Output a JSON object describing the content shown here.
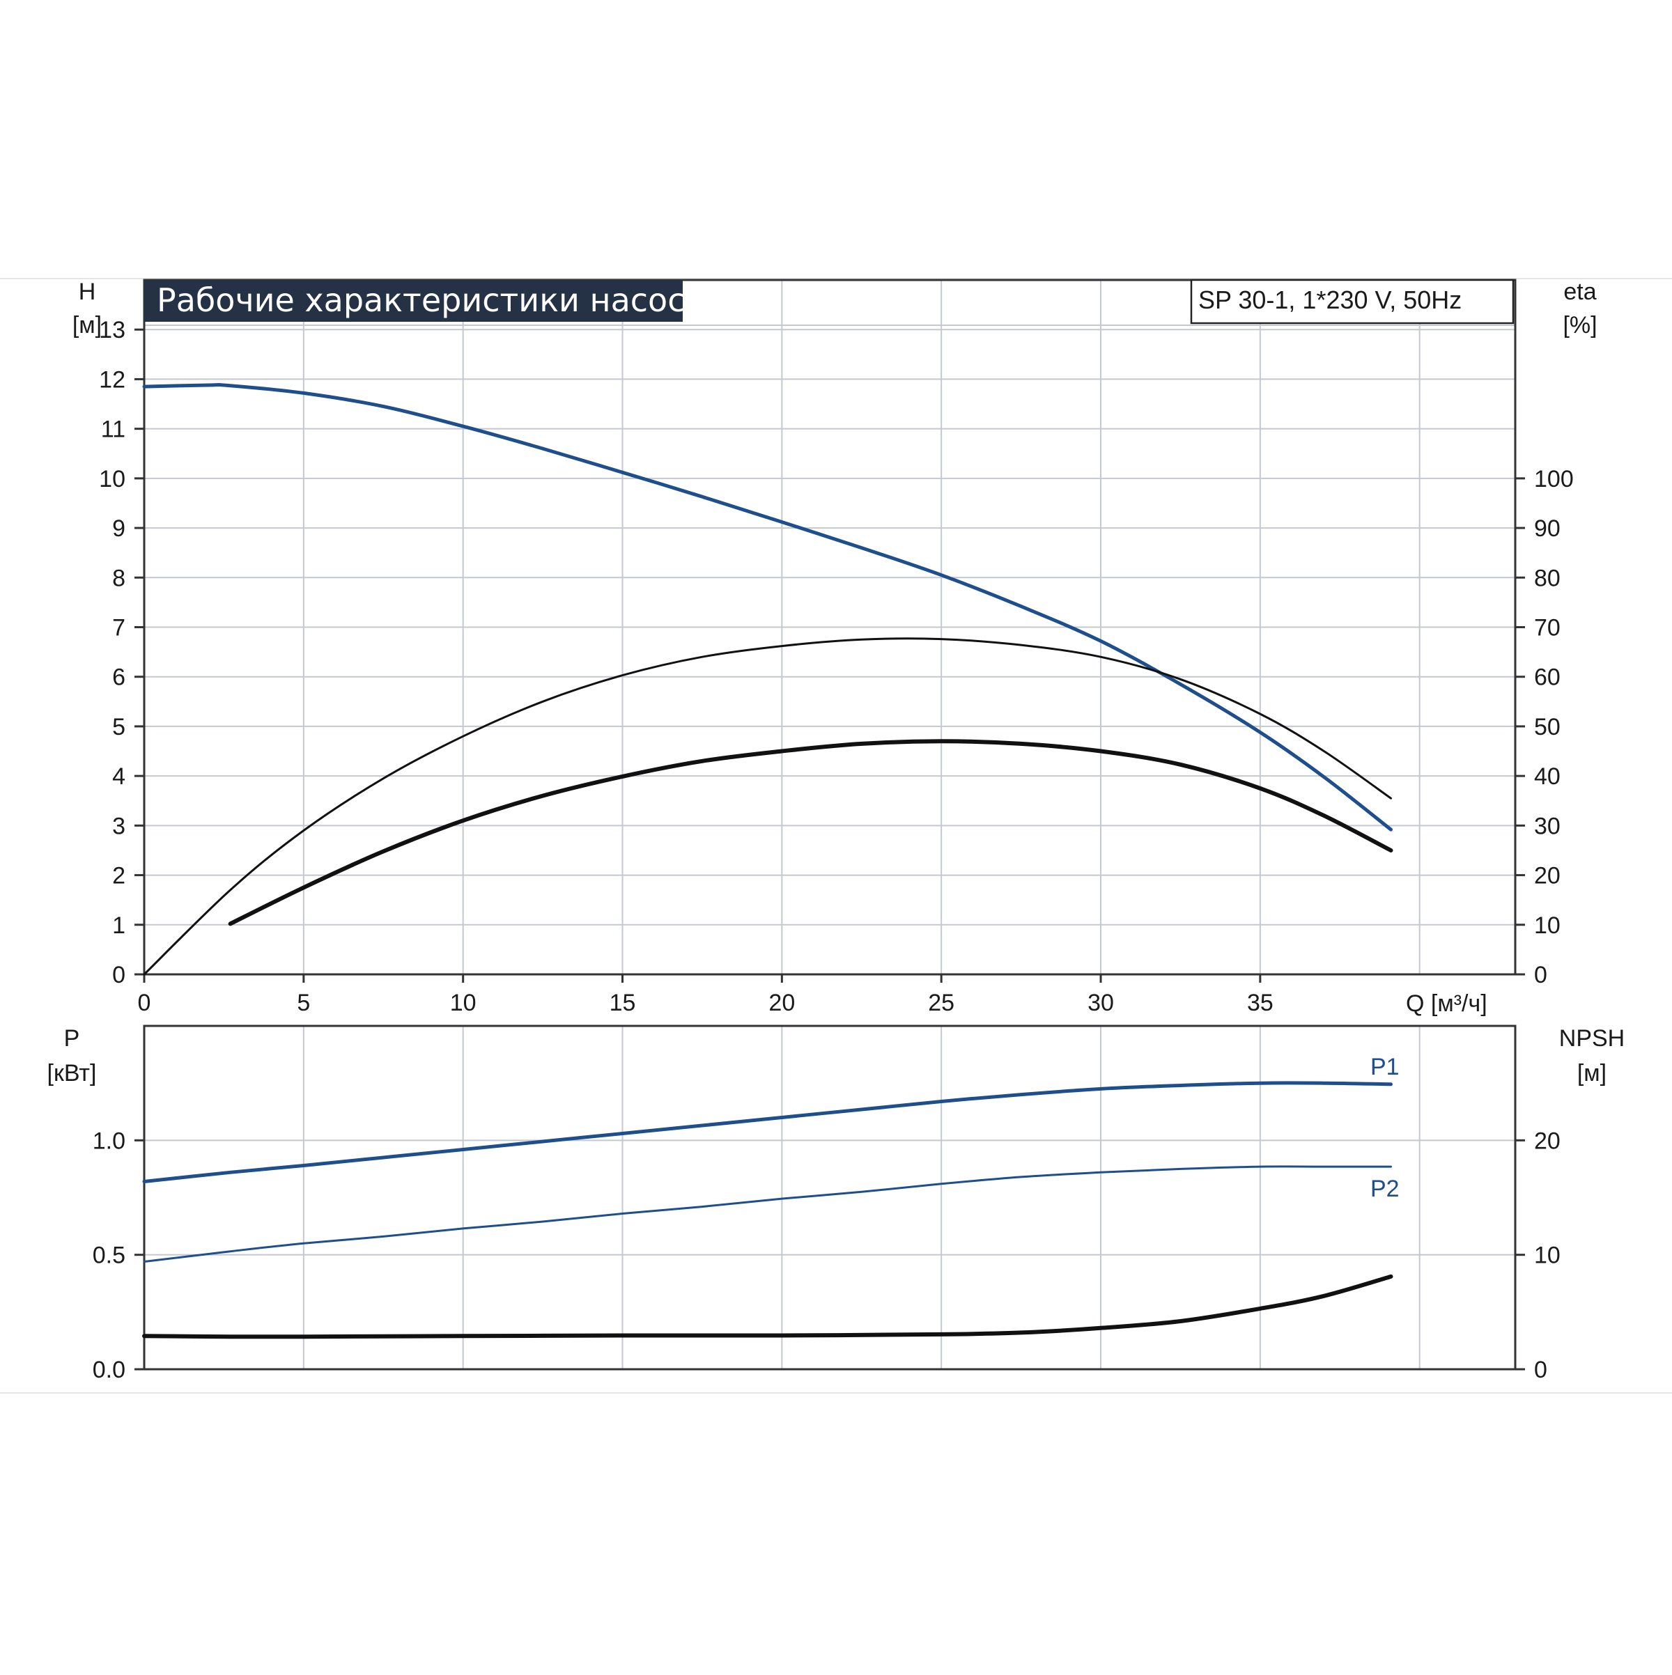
{
  "title": "Рабочие характеристики насоса",
  "model": "SP 30-1, 1*230 V, 50Hz",
  "colors": {
    "title_background": "#253246",
    "blue_curve": "#1f4e8c",
    "black_curve": "#111111",
    "grid": "#c4c8d0",
    "axis": "#333333"
  },
  "chart_data": [
    {
      "type": "line",
      "name": "performance",
      "xlabel": "Q [м³/ч]",
      "ylabel_line1": "H",
      "ylabel_line2": "[м]",
      "y2label_line1": "eta",
      "y2label_line2": "[%]",
      "xlim": [
        0,
        43
      ],
      "ylim": [
        0,
        14
      ],
      "y2lim": [
        0,
        140
      ],
      "x_ticks": [
        0,
        5,
        10,
        15,
        20,
        25,
        30,
        35
      ],
      "x_tick_labels": [
        "0",
        "5",
        "10",
        "15",
        "20",
        "25",
        "30",
        "35"
      ],
      "y_ticks": [
        0,
        1,
        2,
        3,
        4,
        5,
        6,
        7,
        8,
        9,
        10,
        11,
        12,
        13
      ],
      "y_tick_labels": [
        "0",
        "1",
        "2",
        "3",
        "4",
        "5",
        "6",
        "7",
        "8",
        "9",
        "10",
        "11",
        "12",
        "13"
      ],
      "y2_ticks": [
        0,
        10,
        20,
        30,
        40,
        50,
        60,
        70,
        80,
        90,
        100
      ],
      "y2_tick_labels": [
        "0",
        "10",
        "20",
        "30",
        "40",
        "50",
        "60",
        "70",
        "80",
        "90",
        "100"
      ],
      "grid": true,
      "series": [
        {
          "key": "head",
          "axis": "left",
          "color": "blue",
          "values": [
            [
              0,
              11.85
            ],
            [
              2,
              11.88
            ],
            [
              2.7,
              11.87
            ],
            [
              5,
              11.72
            ],
            [
              7.5,
              11.45
            ],
            [
              10,
              11.05
            ],
            [
              12.5,
              10.6
            ],
            [
              15,
              10.12
            ],
            [
              17.5,
              9.63
            ],
            [
              20,
              9.12
            ],
            [
              22.5,
              8.6
            ],
            [
              25,
              8.05
            ],
            [
              27.5,
              7.42
            ],
            [
              30,
              6.72
            ],
            [
              32.5,
              5.85
            ],
            [
              35,
              4.88
            ],
            [
              37,
              3.98
            ],
            [
              39.1,
              2.92
            ]
          ]
        },
        {
          "key": "efficiency_pump",
          "axis": "right",
          "color": "black",
          "values": [
            [
              0,
              0
            ],
            [
              2.7,
              17
            ],
            [
              5,
              29
            ],
            [
              7.5,
              39.5
            ],
            [
              10,
              48
            ],
            [
              12.5,
              55
            ],
            [
              15,
              60.3
            ],
            [
              17.5,
              64
            ],
            [
              20,
              66.2
            ],
            [
              22.5,
              67.5
            ],
            [
              25,
              67.6
            ],
            [
              27.5,
              66.4
            ],
            [
              30,
              64
            ],
            [
              32.5,
              59.5
            ],
            [
              35,
              52.5
            ],
            [
              37,
              45
            ],
            [
              39.1,
              35.5
            ]
          ]
        },
        {
          "key": "efficiency_total",
          "axis": "right",
          "color": "black",
          "values": [
            [
              2.7,
              10.2
            ],
            [
              5,
              17.5
            ],
            [
              7.5,
              24.8
            ],
            [
              10,
              31
            ],
            [
              12.5,
              36
            ],
            [
              15,
              39.9
            ],
            [
              17.5,
              43
            ],
            [
              20,
              45
            ],
            [
              22.5,
              46.5
            ],
            [
              25,
              47
            ],
            [
              27.5,
              46.5
            ],
            [
              30,
              45
            ],
            [
              32.5,
              42.3
            ],
            [
              35,
              37.5
            ],
            [
              37,
              32
            ],
            [
              39.1,
              25
            ]
          ]
        }
      ]
    },
    {
      "type": "line",
      "name": "power",
      "ylabel_line1": "P",
      "ylabel_line2": "[кВт]",
      "y2label_line1": "NPSH",
      "y2label_line2": "[м]",
      "xlim": [
        0,
        43
      ],
      "ylim": [
        0,
        1.5
      ],
      "y2lim": [
        0,
        30
      ],
      "y_ticks": [
        0,
        0.5,
        1.0
      ],
      "y_tick_labels": [
        "0.0",
        "0.5",
        "1.0"
      ],
      "y2_ticks": [
        0,
        10,
        20
      ],
      "y2_tick_labels": [
        "0",
        "10",
        "20"
      ],
      "grid": true,
      "series": [
        {
          "key": "p1",
          "name": "P1",
          "axis": "left",
          "color": "blue",
          "values": [
            [
              0,
              0.82
            ],
            [
              2.7,
              0.86
            ],
            [
              5,
              0.89
            ],
            [
              7.5,
              0.925
            ],
            [
              10,
              0.96
            ],
            [
              12.5,
              0.995
            ],
            [
              15,
              1.03
            ],
            [
              17.5,
              1.065
            ],
            [
              20,
              1.1
            ],
            [
              22.5,
              1.135
            ],
            [
              25,
              1.17
            ],
            [
              27.5,
              1.2
            ],
            [
              30,
              1.225
            ],
            [
              32.5,
              1.24
            ],
            [
              35,
              1.25
            ],
            [
              37,
              1.25
            ],
            [
              39.1,
              1.245
            ]
          ]
        },
        {
          "key": "p2",
          "name": "P2",
          "axis": "left",
          "color": "blue",
          "values": [
            [
              0,
              0.47
            ],
            [
              2.7,
              0.515
            ],
            [
              5,
              0.55
            ],
            [
              7.5,
              0.58
            ],
            [
              10,
              0.615
            ],
            [
              12.5,
              0.645
            ],
            [
              15,
              0.68
            ],
            [
              17.5,
              0.71
            ],
            [
              20,
              0.745
            ],
            [
              22.5,
              0.775
            ],
            [
              25,
              0.81
            ],
            [
              27.5,
              0.84
            ],
            [
              30,
              0.86
            ],
            [
              32.5,
              0.875
            ],
            [
              35,
              0.885
            ],
            [
              37,
              0.885
            ],
            [
              39.1,
              0.885
            ]
          ]
        },
        {
          "key": "npsh",
          "axis": "right",
          "color": "black",
          "values": [
            [
              0,
              2.9
            ],
            [
              2.7,
              2.85
            ],
            [
              5,
              2.85
            ],
            [
              10,
              2.9
            ],
            [
              15,
              2.95
            ],
            [
              20,
              2.95
            ],
            [
              25,
              3.05
            ],
            [
              27.5,
              3.2
            ],
            [
              30,
              3.6
            ],
            [
              32.5,
              4.2
            ],
            [
              35,
              5.3
            ],
            [
              37,
              6.4
            ],
            [
              39.1,
              8.1
            ]
          ]
        }
      ]
    }
  ]
}
